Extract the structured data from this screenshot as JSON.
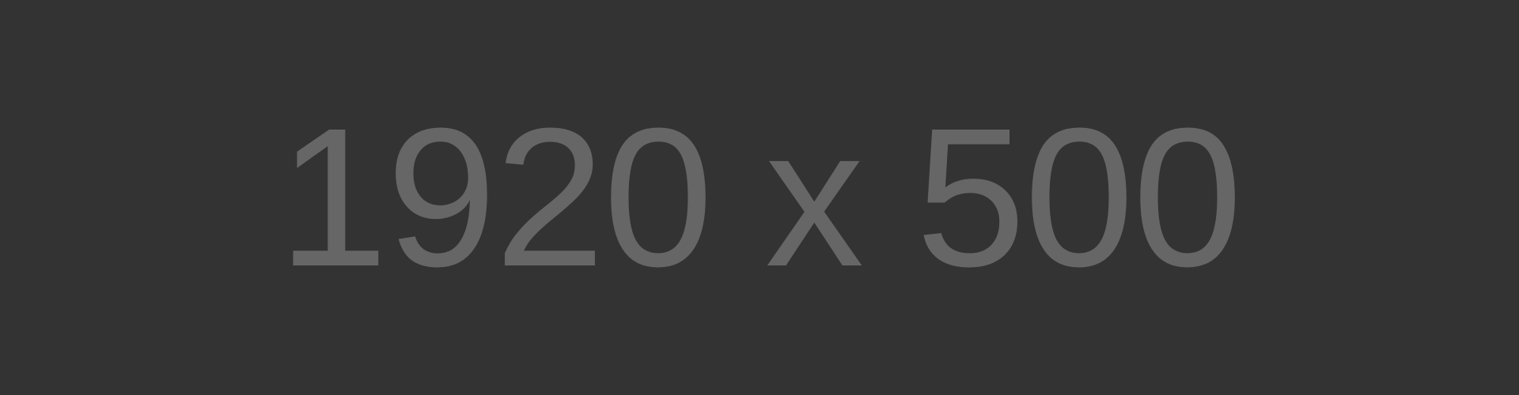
{
  "placeholder": {
    "text": "1920 x 500",
    "background_color": "#333333",
    "text_color": "#666666"
  }
}
